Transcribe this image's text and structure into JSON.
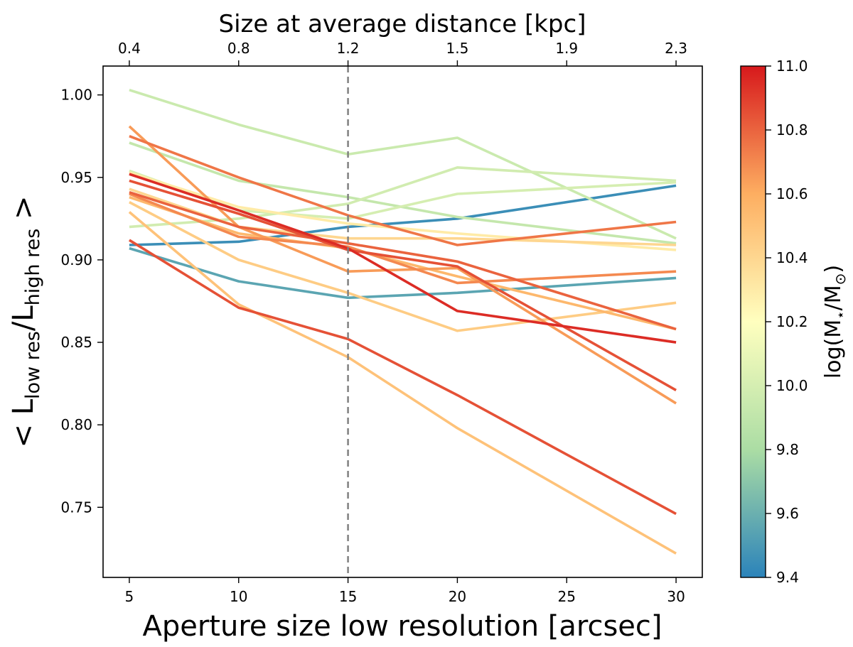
{
  "chart_data": {
    "type": "line",
    "xlabel": "Aperture size low resolution [arcsec]",
    "ylabel": {
      "prefix": "< L",
      "sub1": "low res",
      "mid": "/L",
      "sub2": "high res",
      "suffix": " >"
    },
    "top_xlabel": "Size at average distance [kpc]",
    "top_ticks": [
      {
        "x": 5,
        "label": "0.4"
      },
      {
        "x": 10,
        "label": "0.8"
      },
      {
        "x": 15,
        "label": "1.2"
      },
      {
        "x": 20,
        "label": "1.5"
      },
      {
        "x": 25,
        "label": "1.9"
      },
      {
        "x": 30,
        "label": "2.3"
      }
    ],
    "xlim": [
      3.8,
      31.2
    ],
    "ylim": [
      0.7075,
      1.0175
    ],
    "xticks": [
      5,
      10,
      15,
      20,
      25,
      30
    ],
    "xtick_labels": [
      "5",
      "10",
      "15",
      "20",
      "25",
      "30"
    ],
    "yticks": [
      0.75,
      0.8,
      0.85,
      0.9,
      0.95,
      1.0
    ],
    "ytick_labels": [
      "0.75",
      "0.80",
      "0.85",
      "0.90",
      "0.95",
      "1.00"
    ],
    "vline_x": 15,
    "vline_color": "#808080",
    "grid": false,
    "colorbar": {
      "label_main": "log(M",
      "label_sub1": "⋆",
      "label_mid": "/M",
      "label_sub2": "⊙",
      "label_end": ")",
      "range": [
        9.4,
        11.0
      ],
      "ticks": [
        9.4,
        9.6,
        9.8,
        10.0,
        10.2,
        10.4,
        10.6,
        10.8,
        11.0
      ],
      "tick_labels": [
        "9.4",
        "9.6",
        "9.8",
        "10.0",
        "10.2",
        "10.4",
        "10.6",
        "10.8",
        "11.0"
      ],
      "colormap_stops": [
        "#2b83ba",
        "#abdda4",
        "#ffffbf",
        "#fdae61",
        "#d7191c"
      ]
    },
    "x": [
      5,
      10,
      15,
      20,
      30
    ],
    "series": [
      {
        "mass": 9.45,
        "values": [
          0.909,
          0.911,
          0.92,
          0.925,
          0.945
        ]
      },
      {
        "mass": 9.55,
        "values": [
          0.907,
          0.887,
          0.877,
          0.88,
          0.889
        ]
      },
      {
        "mass": 9.95,
        "values": [
          1.003,
          0.982,
          0.964,
          0.974,
          0.913
        ]
      },
      {
        "mass": 9.92,
        "values": [
          0.971,
          0.948,
          0.938,
          0.926,
          0.91
        ]
      },
      {
        "mass": 9.98,
        "values": [
          0.92,
          0.925,
          0.934,
          0.956,
          0.948
        ]
      },
      {
        "mass": 10.0,
        "values": [
          0.954,
          0.93,
          0.925,
          0.94,
          0.947
        ]
      },
      {
        "mass": 10.3,
        "values": [
          0.953,
          0.932,
          0.922,
          0.916,
          0.906
        ]
      },
      {
        "mass": 10.4,
        "values": [
          0.943,
          0.92,
          0.913,
          0.913,
          0.909
        ]
      },
      {
        "mass": 10.45,
        "values": [
          0.935,
          0.9,
          0.88,
          0.857,
          0.874
        ]
      },
      {
        "mass": 10.5,
        "values": [
          0.929,
          0.873,
          0.841,
          0.798,
          0.722
        ]
      },
      {
        "mass": 10.55,
        "values": [
          0.938,
          0.916,
          0.907,
          0.89,
          0.858
        ]
      },
      {
        "mass": 10.65,
        "values": [
          0.981,
          0.92,
          0.893,
          0.895,
          0.813
        ]
      },
      {
        "mass": 10.75,
        "values": [
          0.975,
          0.95,
          0.927,
          0.909,
          0.923
        ]
      },
      {
        "mass": 10.7,
        "values": [
          0.94,
          0.914,
          0.908,
          0.886,
          0.893
        ]
      },
      {
        "mass": 10.8,
        "values": [
          0.941,
          0.92,
          0.91,
          0.899,
          0.858
        ]
      },
      {
        "mass": 10.85,
        "values": [
          0.912,
          0.871,
          0.852,
          0.818,
          0.746
        ]
      },
      {
        "mass": 10.85,
        "values": [
          0.948,
          0.928,
          0.906,
          0.896,
          0.821
        ]
      },
      {
        "mass": 10.95,
        "values": [
          0.952,
          0.93,
          0.907,
          0.869,
          0.85
        ]
      }
    ]
  }
}
